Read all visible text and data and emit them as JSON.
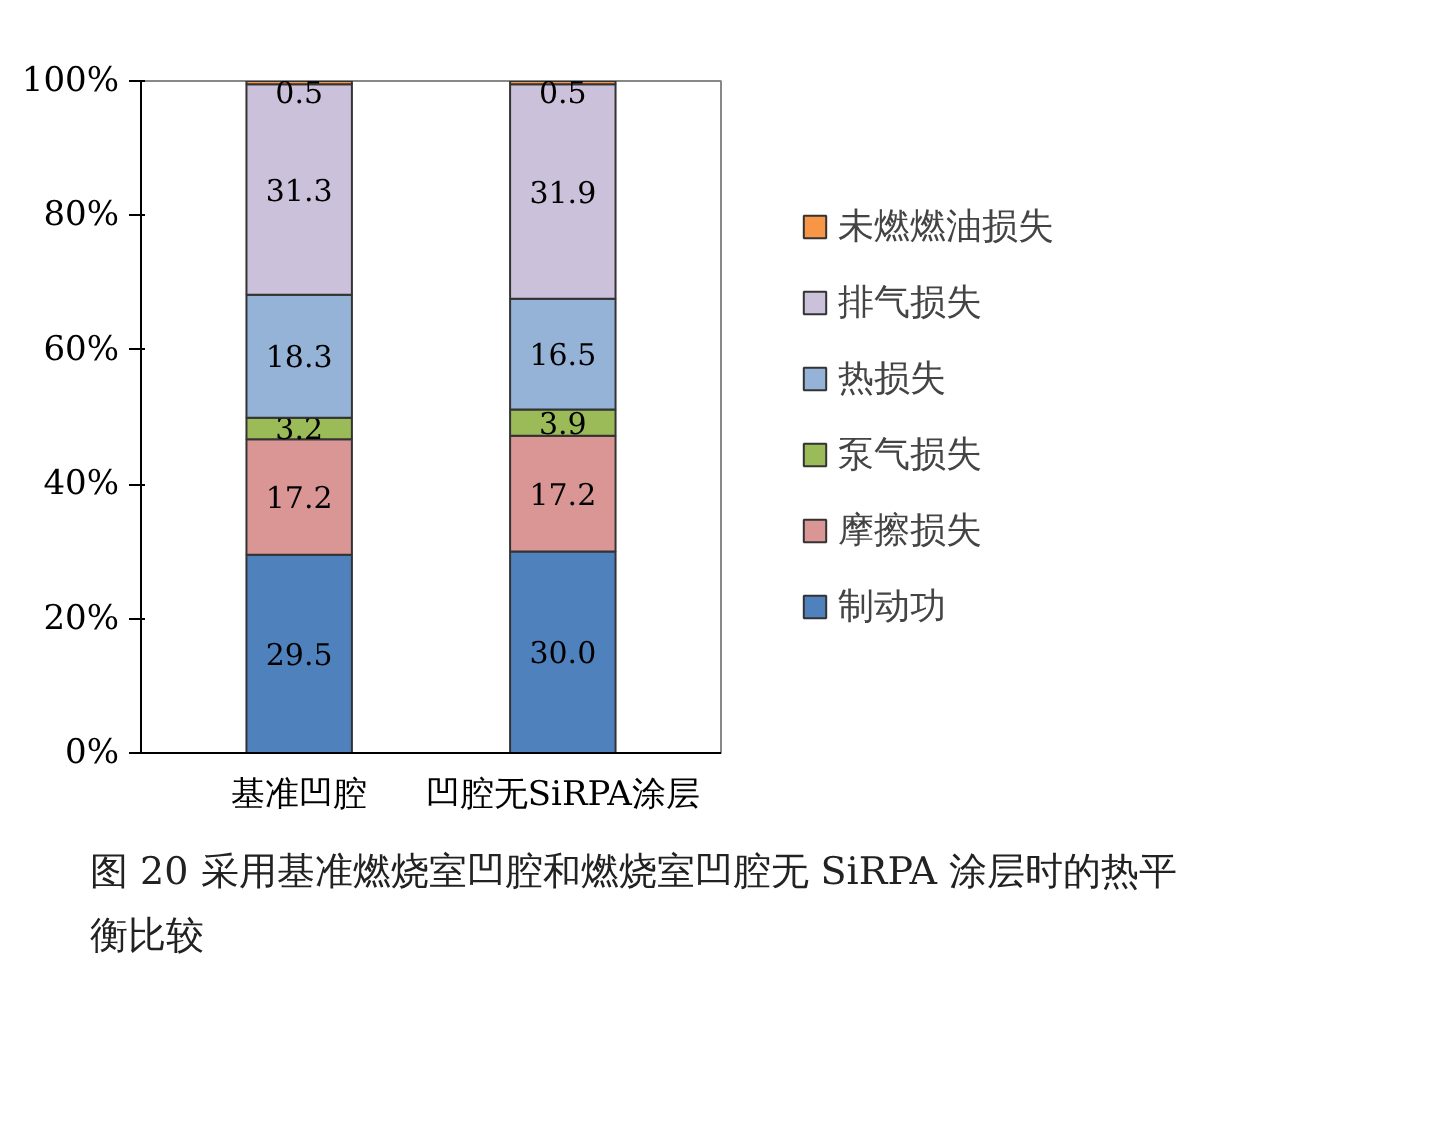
{
  "chart_data": {
    "type": "bar",
    "stacked": true,
    "title": "图 20  采用基准燃烧室凹腔和燃烧室凹腔无 SiRPA 涂层时的热平衡比较",
    "categories": [
      "基准凹腔",
      "凹腔无SiRPA涂层"
    ],
    "series": [
      {
        "name": "制动功",
        "color": "#4f81bd",
        "values": [
          29.5,
          30.0
        ],
        "value_labels": [
          "29.5",
          "30.0"
        ]
      },
      {
        "name": "摩擦损失",
        "color": "#d99694",
        "values": [
          17.2,
          17.2
        ],
        "value_labels": [
          "17.2",
          "17.2"
        ]
      },
      {
        "name": "泵气损失",
        "color": "#9bbb59",
        "values": [
          3.2,
          3.9
        ],
        "value_labels": [
          "3.2",
          "3.9"
        ]
      },
      {
        "name": "热损失",
        "color": "#95b3d7",
        "values": [
          18.3,
          16.5
        ],
        "value_labels": [
          "18.3",
          "16.5"
        ]
      },
      {
        "name": "排气损失",
        "color": "#ccc1da",
        "values": [
          31.3,
          31.9
        ],
        "value_labels": [
          "31.3",
          "31.9"
        ]
      },
      {
        "name": "未燃燃油损失",
        "color": "#f79646",
        "values": [
          0.5,
          0.5
        ],
        "value_labels": [
          "0.5",
          "0.5"
        ]
      }
    ],
    "ylim": [
      0,
      100
    ],
    "yticks": [
      {
        "value": 0,
        "label": "0%"
      },
      {
        "value": 20,
        "label": "20%"
      },
      {
        "value": 40,
        "label": "40%"
      },
      {
        "value": 60,
        "label": "60%"
      },
      {
        "value": 80,
        "label": "80%"
      },
      {
        "value": 100,
        "label": "100%"
      }
    ],
    "grid": false,
    "legend": "right"
  }
}
